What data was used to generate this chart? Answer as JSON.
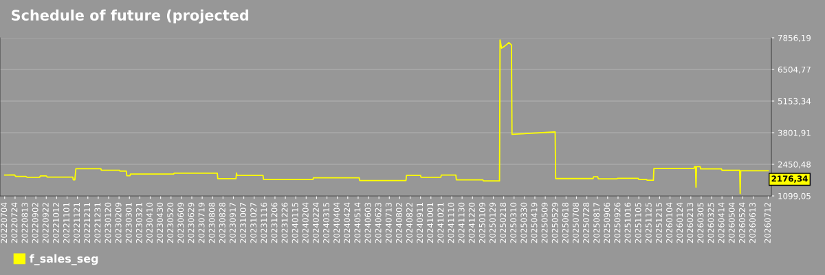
{
  "chart_data": {
    "type": "line",
    "title": "Schedule of future (projected",
    "x": [
      "2022-07-04",
      "2022-07-23",
      "2022-07-25",
      "2022-08-14",
      "2022-08-16",
      "2022-09-09",
      "2022-09-11",
      "2022-09-22",
      "2022-09-24",
      "2022-11-12",
      "2022-11-13",
      "2022-11-16",
      "2022-11-18",
      "2023-01-05",
      "2023-01-06",
      "2023-02-10",
      "2023-02-11",
      "2023-02-23",
      "2023-02-24",
      "2023-03-02",
      "2023-03-03",
      "2023-05-25",
      "2023-05-26",
      "2023-08-17",
      "2023-08-18",
      "2023-09-22",
      "2023-09-23",
      "2023-09-24",
      "2023-11-13",
      "2023-11-14",
      "2024-02-17",
      "2024-02-18",
      "2024-05-16",
      "2024-05-17",
      "2024-08-14",
      "2024-08-15",
      "2024-09-11",
      "2024-09-12",
      "2024-10-20",
      "2024-10-21",
      "2024-11-18",
      "2024-11-19",
      "2025-01-09",
      "2025-01-10",
      "2025-02-10",
      "2025-02-11",
      "2025-02-14",
      "2025-02-20",
      "2025-02-28",
      "2025-03-05",
      "2025-03-06",
      "2025-05-27",
      "2025-05-28",
      "2025-05-29",
      "2025-08-09",
      "2025-08-10",
      "2025-08-18",
      "2025-08-19",
      "2025-09-24",
      "2025-09-25",
      "2025-11-04",
      "2025-11-05",
      "2025-11-20",
      "2025-11-21",
      "2025-12-03",
      "2025-12-04",
      "2026-02-19",
      "2026-02-20",
      "2026-02-22",
      "2026-02-23",
      "2026-02-24",
      "2026-03-03",
      "2026-03-04",
      "2026-04-13",
      "2026-04-14",
      "2026-05-18",
      "2026-05-19",
      "2026-05-20",
      "2026-07-12"
    ],
    "series": [
      {
        "name": "f_sales_seg",
        "color": "#ffff00",
        "values": [
          1992,
          2000,
          1934,
          1934,
          1896,
          1896,
          1954,
          1954,
          1905,
          1905,
          1788,
          1788,
          2266,
          2266,
          2197,
          2197,
          2158,
          2158,
          1963,
          1963,
          2033,
          2033,
          2071,
          2071,
          1837,
          1837,
          2080,
          1974,
          1974,
          1800,
          1800,
          1876,
          1876,
          1759,
          1759,
          1974,
          1974,
          1896,
          1896,
          1992,
          1992,
          1788,
          1788,
          1741,
          1741,
          7767,
          7414,
          7500,
          7650,
          7550,
          3734,
          3831,
          3831,
          1841,
          1841,
          1918,
          1918,
          1830,
          1830,
          1850,
          1850,
          1800,
          1800,
          1771,
          1771,
          2270,
          2270,
          2350,
          2350,
          1476,
          2350,
          2350,
          2253,
          2253,
          2194,
          2194,
          1203,
          2174,
          2176.34
        ]
      }
    ],
    "xlim": [
      "2022-06-25",
      "2026-07-18"
    ],
    "xticks": [
      {
        "value": "2022-07-04",
        "label": "20220704"
      },
      {
        "value": "2022-07-24",
        "label": "20220724"
      },
      {
        "value": "2022-08-13",
        "label": "20220813"
      },
      {
        "value": "2022-09-02",
        "label": "20220902"
      },
      {
        "value": "2022-09-22",
        "label": "20220922"
      },
      {
        "value": "2022-10-12",
        "label": "20221012"
      },
      {
        "value": "2022-11-01",
        "label": "20221101"
      },
      {
        "value": "2022-11-21",
        "label": "20221121"
      },
      {
        "value": "2022-12-11",
        "label": "20221211"
      },
      {
        "value": "2022-12-31",
        "label": "20221231"
      },
      {
        "value": "2023-01-20",
        "label": "20230120"
      },
      {
        "value": "2023-02-09",
        "label": "20230209"
      },
      {
        "value": "2023-03-01",
        "label": "20230301"
      },
      {
        "value": "2023-03-21",
        "label": "20230321"
      },
      {
        "value": "2023-04-10",
        "label": "20230410"
      },
      {
        "value": "2023-04-30",
        "label": "20230430"
      },
      {
        "value": "2023-05-20",
        "label": "20230520"
      },
      {
        "value": "2023-06-09",
        "label": "20230609"
      },
      {
        "value": "2023-06-29",
        "label": "20230629"
      },
      {
        "value": "2023-07-19",
        "label": "20230719"
      },
      {
        "value": "2023-08-08",
        "label": "20230808"
      },
      {
        "value": "2023-08-28",
        "label": "20230828"
      },
      {
        "value": "2023-09-17",
        "label": "20230917"
      },
      {
        "value": "2023-10-07",
        "label": "20231007"
      },
      {
        "value": "2023-10-27",
        "label": "20231027"
      },
      {
        "value": "2023-11-16",
        "label": "20231116"
      },
      {
        "value": "2023-12-06",
        "label": "20231206"
      },
      {
        "value": "2023-12-26",
        "label": "20231226"
      },
      {
        "value": "2024-01-15",
        "label": "20240115"
      },
      {
        "value": "2024-02-04",
        "label": "20240204"
      },
      {
        "value": "2024-02-24",
        "label": "20240224"
      },
      {
        "value": "2024-03-15",
        "label": "20240315"
      },
      {
        "value": "2024-04-04",
        "label": "20240404"
      },
      {
        "value": "2024-04-24",
        "label": "20240424"
      },
      {
        "value": "2024-05-14",
        "label": "20240514"
      },
      {
        "value": "2024-06-03",
        "label": "20240603"
      },
      {
        "value": "2024-06-23",
        "label": "20240623"
      },
      {
        "value": "2024-07-13",
        "label": "20240713"
      },
      {
        "value": "2024-08-02",
        "label": "20240802"
      },
      {
        "value": "2024-08-22",
        "label": "20240822"
      },
      {
        "value": "2024-09-11",
        "label": "20240911"
      },
      {
        "value": "2024-10-01",
        "label": "20241001"
      },
      {
        "value": "2024-10-21",
        "label": "20241021"
      },
      {
        "value": "2024-11-10",
        "label": "20241110"
      },
      {
        "value": "2024-11-30",
        "label": "20241130"
      },
      {
        "value": "2024-12-20",
        "label": "20241220"
      },
      {
        "value": "2025-01-09",
        "label": "20250109"
      },
      {
        "value": "2025-01-29",
        "label": "20250129"
      },
      {
        "value": "2025-02-18",
        "label": "20250218"
      },
      {
        "value": "2025-03-10",
        "label": "20250310"
      },
      {
        "value": "2025-03-30",
        "label": "20250330"
      },
      {
        "value": "2025-04-19",
        "label": "20250419"
      },
      {
        "value": "2025-05-09",
        "label": "20250509"
      },
      {
        "value": "2025-05-29",
        "label": "20250529"
      },
      {
        "value": "2025-06-18",
        "label": "20250618"
      },
      {
        "value": "2025-07-08",
        "label": "20250708"
      },
      {
        "value": "2025-07-28",
        "label": "20250728"
      },
      {
        "value": "2025-08-17",
        "label": "20250817"
      },
      {
        "value": "2025-09-06",
        "label": "20250906"
      },
      {
        "value": "2025-09-26",
        "label": "20250926"
      },
      {
        "value": "2025-10-16",
        "label": "20251016"
      },
      {
        "value": "2025-11-05",
        "label": "20251105"
      },
      {
        "value": "2025-11-25",
        "label": "20251125"
      },
      {
        "value": "2025-12-15",
        "label": "20251215"
      },
      {
        "value": "2026-01-04",
        "label": "20260104"
      },
      {
        "value": "2026-01-24",
        "label": "20260124"
      },
      {
        "value": "2026-02-13",
        "label": "20260213"
      },
      {
        "value": "2026-03-05",
        "label": "20260305"
      },
      {
        "value": "2026-03-25",
        "label": "20260325"
      },
      {
        "value": "2026-04-14",
        "label": "20260414"
      },
      {
        "value": "2026-05-04",
        "label": "20260504"
      },
      {
        "value": "2026-05-24",
        "label": "20260524"
      },
      {
        "value": "2026-06-13",
        "label": "20260613"
      },
      {
        "value": "2026-07-12",
        "label": "20260712"
      }
    ],
    "ylim": [
      1099.05,
      7856.19
    ],
    "yticks": [
      {
        "value": 1099.05,
        "label": "1099,05"
      },
      {
        "value": 2450.48,
        "label": "2450,48"
      },
      {
        "value": 3801.91,
        "label": "3801,91"
      },
      {
        "value": 5153.34,
        "label": "5153,34"
      },
      {
        "value": 6504.77,
        "label": "6504,77"
      },
      {
        "value": 7856.19,
        "label": "7856,19"
      }
    ],
    "grid": "y",
    "legend": "bottom left",
    "annotations": [
      {
        "text": "2176,34",
        "x": "2026-07-12",
        "y": 2176.34
      }
    ]
  }
}
